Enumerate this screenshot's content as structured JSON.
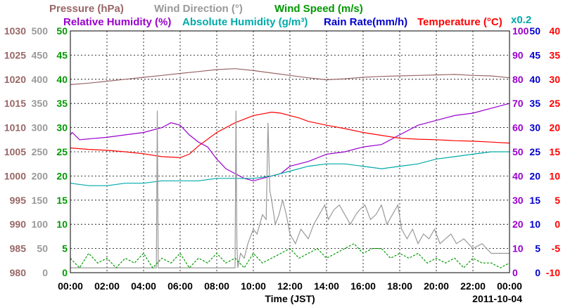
{
  "chart_data": {
    "type": "line",
    "date_label": "2011-10-04",
    "xlabel": "Time (JST)",
    "x_ticks": [
      "00:00",
      "02:00",
      "04:00",
      "06:00",
      "08:00",
      "10:00",
      "12:00",
      "14:00",
      "16:00",
      "18:00",
      "20:00",
      "22:00",
      "00:00"
    ],
    "x_hours": [
      0,
      24
    ],
    "legend_row1": [
      {
        "text": "Pressure (hPa)",
        "color": "#996666"
      },
      {
        "text": "Wind Direction (°)",
        "color": "#999999"
      },
      {
        "text": "Wind Speed (m/s)",
        "color": "#009900"
      }
    ],
    "legend_row2": [
      {
        "text": "Relative Humidity (%)",
        "color": "#9900cc"
      },
      {
        "text": "Absolute Humidity (g/m³)",
        "color": "#00aaaa"
      },
      {
        "text": "Rain Rate(mm/h)",
        "color": "#0000cc"
      },
      {
        "text": "Temperature (°C)",
        "color": "#ff0000"
      }
    ],
    "abs_humidity_scale_note": "x0.2",
    "axes": {
      "pressure": {
        "color": "#996666",
        "range": [
          980,
          1030
        ],
        "ticks": [
          1030,
          1025,
          1020,
          1015,
          1010,
          1005,
          1000,
          995,
          990,
          985,
          980
        ]
      },
      "wind_dir": {
        "color": "#999999",
        "range": [
          0,
          500
        ],
        "ticks": [
          500,
          450,
          400,
          350,
          300,
          250,
          200,
          150,
          100,
          50,
          0
        ]
      },
      "wind_speed": {
        "color": "#009900",
        "range": [
          0,
          50
        ],
        "ticks": [
          50,
          45,
          40,
          35,
          30,
          25,
          20,
          15,
          10,
          5,
          0
        ]
      },
      "rh": {
        "color": "#9900cc",
        "range": [
          0,
          100
        ],
        "ticks": [
          100,
          90,
          80,
          70,
          60,
          50,
          40,
          30,
          20,
          10,
          0
        ]
      },
      "rain": {
        "color": "#0000cc",
        "range": [
          0,
          50
        ],
        "ticks": [
          50,
          45,
          40,
          35,
          30,
          25,
          20,
          15,
          10,
          5,
          0
        ]
      },
      "temp": {
        "color": "#ff0000",
        "range": [
          -10,
          40
        ],
        "ticks": [
          40,
          35,
          30,
          25,
          20,
          15,
          10,
          5,
          0,
          -5,
          -10
        ]
      }
    },
    "series": [
      {
        "name": "Pressure (hPa)",
        "axis": "pressure",
        "color": "#996666",
        "x": [
          0,
          1,
          2,
          3,
          4,
          5,
          6,
          7,
          8,
          9,
          10,
          11,
          12,
          13,
          14,
          15,
          16,
          17,
          18,
          19,
          20,
          21,
          22,
          23,
          24
        ],
        "y": [
          1018.9,
          1019.2,
          1019.6,
          1020.0,
          1020.4,
          1020.8,
          1021.2,
          1021.6,
          1022.0,
          1022.2,
          1021.8,
          1021.3,
          1020.8,
          1020.3,
          1019.9,
          1020.1,
          1020.4,
          1020.6,
          1020.7,
          1020.8,
          1020.9,
          1021.0,
          1020.8,
          1020.7,
          1020.3
        ]
      },
      {
        "name": "Relative Humidity (%)",
        "axis": "rh",
        "color": "#9900cc",
        "x": [
          0,
          0.1,
          0.5,
          2,
          3,
          4,
          5,
          5.5,
          6,
          6.5,
          7,
          7.5,
          8,
          8.5,
          9,
          9.5,
          10,
          10.5,
          11,
          11.5,
          12,
          12.5,
          13,
          14,
          15,
          16,
          17,
          18,
          19,
          20,
          21,
          22,
          23,
          24
        ],
        "y": [
          57,
          58,
          55,
          56,
          57,
          58,
          60,
          62,
          61,
          57,
          54,
          52,
          47,
          43,
          41,
          39,
          38,
          39,
          40,
          41,
          44,
          45,
          46,
          49,
          50,
          52,
          53,
          57,
          61,
          63,
          65,
          66,
          68,
          70
        ]
      },
      {
        "name": "Absolute Humidity (g/m³)",
        "axis": "rh",
        "color": "#00aaaa",
        "x": [
          0,
          1,
          2,
          3,
          4,
          5,
          6,
          7,
          8,
          9,
          10,
          11,
          12,
          13,
          14,
          15,
          16,
          17,
          18,
          19,
          20,
          21,
          22,
          23,
          24
        ],
        "y": [
          37,
          36,
          36,
          37,
          37,
          38,
          38,
          38,
          39,
          39,
          39,
          40,
          42,
          44,
          45,
          45,
          44,
          43,
          44,
          45,
          47,
          48,
          49,
          50,
          50
        ]
      },
      {
        "name": "Temperature (°C)",
        "axis": "temp",
        "color": "#ff0000",
        "x": [
          0,
          1,
          2,
          3,
          4,
          5,
          6,
          6.5,
          7,
          8,
          9,
          10,
          11,
          11.5,
          12,
          12.5,
          13,
          14,
          15,
          16,
          17,
          18,
          19,
          20,
          21,
          22,
          23,
          24
        ],
        "y": [
          15.8,
          15.5,
          15.3,
          15.0,
          14.6,
          14.0,
          13.8,
          14.5,
          16.2,
          19.0,
          21.0,
          22.5,
          23.2,
          23.0,
          22.5,
          22.0,
          21.3,
          20.5,
          19.8,
          19.0,
          18.4,
          17.8,
          17.6,
          17.5,
          17.3,
          17.2,
          17.0,
          16.8
        ]
      },
      {
        "name": "Wind Direction (°)",
        "axis": "wind_dir",
        "color": "#999999",
        "x": [
          0,
          4.7,
          4.75,
          4.8,
          4.85,
          9.0,
          9.05,
          9.1,
          9.15,
          9.3,
          9.5,
          9.7,
          10.0,
          10.2,
          10.5,
          10.7,
          10.8,
          10.9,
          11.0,
          11.2,
          11.4,
          11.6,
          11.8,
          12.0,
          12.3,
          12.6,
          13.0,
          13.3,
          13.6,
          13.9,
          14.1,
          14.4,
          14.7,
          15.0,
          15.3,
          15.6,
          15.8,
          16.1,
          16.4,
          16.7,
          17.0,
          17.3,
          17.6,
          17.9,
          18.1,
          18.4,
          18.7,
          19.0,
          19.3,
          19.6,
          19.9,
          20.2,
          20.5,
          20.8,
          21.1,
          21.5,
          22.0,
          22.5,
          23.0,
          24.0
        ],
        "y": [
          10,
          10,
          335,
          10,
          10,
          10,
          335,
          60,
          10,
          40,
          30,
          60,
          90,
          80,
          120,
          110,
          310,
          170,
          150,
          100,
          120,
          150,
          120,
          80,
          60,
          90,
          70,
          100,
          120,
          140,
          110,
          130,
          140,
          120,
          100,
          120,
          130,
          140,
          110,
          120,
          140,
          100,
          120,
          140,
          90,
          70,
          90,
          60,
          80,
          70,
          90,
          60,
          70,
          80,
          60,
          70,
          50,
          60,
          40,
          40
        ]
      },
      {
        "name": "Wind Speed (m/s)",
        "axis": "wind_speed",
        "color": "#009900",
        "x": [
          0,
          0.5,
          1,
          1.5,
          2,
          2.5,
          3,
          3.5,
          4,
          4.5,
          5,
          5.5,
          6,
          6.5,
          7,
          7.5,
          8,
          8.5,
          9,
          9.5,
          10,
          10.5,
          11,
          11.5,
          12,
          12.5,
          13,
          13.5,
          14,
          14.5,
          15,
          15.5,
          16,
          16.5,
          17,
          17.5,
          18,
          18.5,
          19,
          19.5,
          20,
          20.5,
          21,
          21.5,
          22,
          22.5,
          23,
          23.5,
          24
        ],
        "y": [
          3,
          1,
          4,
          2,
          3,
          1,
          3,
          2,
          4,
          1,
          3,
          2,
          4,
          1,
          3,
          2,
          4,
          2,
          3,
          1,
          4,
          2,
          3,
          4,
          5,
          3,
          4,
          5,
          3,
          4,
          5,
          6,
          4,
          5,
          5,
          3,
          4,
          3,
          4,
          2,
          3,
          2,
          3,
          1,
          3,
          2,
          2,
          1,
          2
        ]
      }
    ]
  }
}
